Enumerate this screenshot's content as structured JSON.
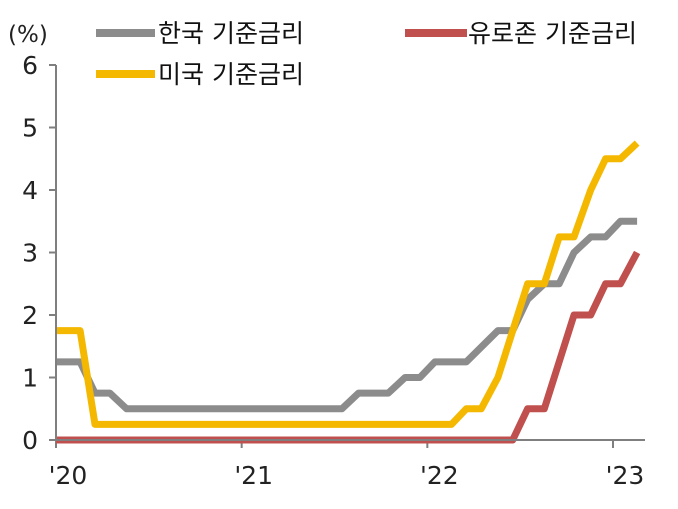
{
  "chart_data": {
    "type": "line",
    "title": "",
    "y_unit_label": "(%)",
    "ylim": [
      0,
      6
    ],
    "yticks": [
      0,
      1,
      2,
      3,
      4,
      5,
      6
    ],
    "xlim": [
      2020.0,
      2023.2
    ],
    "xticks": [
      {
        "value": 2020,
        "label": "'20"
      },
      {
        "value": 2021,
        "label": "'21"
      },
      {
        "value": 2022,
        "label": "'22"
      },
      {
        "value": 2023,
        "label": "'23"
      }
    ],
    "grid": false,
    "legend_position": "top",
    "series": [
      {
        "name": "한국 기준금리",
        "color": "#8c8c8c",
        "points": [
          [
            2020.0,
            1.25
          ],
          [
            2020.13,
            1.25
          ],
          [
            2020.21,
            0.75
          ],
          [
            2020.29,
            0.75
          ],
          [
            2020.38,
            0.5
          ],
          [
            2021.54,
            0.5
          ],
          [
            2021.63,
            0.75
          ],
          [
            2021.79,
            0.75
          ],
          [
            2021.88,
            1.0
          ],
          [
            2021.96,
            1.0
          ],
          [
            2022.04,
            1.25
          ],
          [
            2022.21,
            1.25
          ],
          [
            2022.38,
            1.75
          ],
          [
            2022.46,
            1.75
          ],
          [
            2022.54,
            2.25
          ],
          [
            2022.63,
            2.5
          ],
          [
            2022.71,
            2.5
          ],
          [
            2022.79,
            3.0
          ],
          [
            2022.88,
            3.25
          ],
          [
            2022.96,
            3.25
          ],
          [
            2023.04,
            3.5
          ],
          [
            2023.13,
            3.5
          ]
        ]
      },
      {
        "name": "유로존 기준금리",
        "color": "#c0504d",
        "points": [
          [
            2020.0,
            0.0
          ],
          [
            2022.46,
            0.0
          ],
          [
            2022.54,
            0.5
          ],
          [
            2022.63,
            0.5
          ],
          [
            2022.79,
            2.0
          ],
          [
            2022.88,
            2.0
          ],
          [
            2022.96,
            2.5
          ],
          [
            2023.04,
            2.5
          ],
          [
            2023.13,
            3.0
          ]
        ]
      },
      {
        "name": "미국 기준금리",
        "color": "#f5b800",
        "points": [
          [
            2020.0,
            1.75
          ],
          [
            2020.13,
            1.75
          ],
          [
            2020.21,
            0.25
          ],
          [
            2022.13,
            0.25
          ],
          [
            2022.21,
            0.5
          ],
          [
            2022.29,
            0.5
          ],
          [
            2022.38,
            1.0
          ],
          [
            2022.54,
            2.5
          ],
          [
            2022.63,
            2.5
          ],
          [
            2022.71,
            3.25
          ],
          [
            2022.79,
            3.25
          ],
          [
            2022.88,
            4.0
          ],
          [
            2022.96,
            4.5
          ],
          [
            2023.04,
            4.5
          ],
          [
            2023.13,
            4.75
          ]
        ]
      }
    ]
  }
}
